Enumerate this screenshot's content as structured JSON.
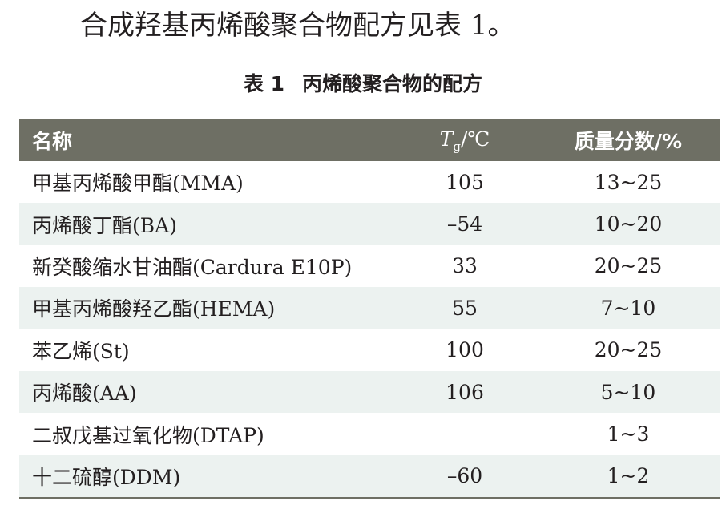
{
  "intro_text": "合成羟基丙烯酸聚合物配方见表 1。",
  "caption": {
    "number": "表 1",
    "title": "丙烯酸聚合物的配方"
  },
  "header": {
    "name": "名称",
    "tg_symbol": "T",
    "tg_sub": "g",
    "tg_unit": "/℃",
    "mass_fraction": "质量分数/%"
  },
  "rows": [
    {
      "name": "甲基丙烯酸甲酯(MMA)",
      "tg": "105",
      "mass": "13~25"
    },
    {
      "name": "丙烯酸丁酯(BA)",
      "tg": "–54",
      "mass": "10~20"
    },
    {
      "name": "新癸酸缩水甘油酯(Cardura E10P)",
      "tg": "33",
      "mass": "20~25"
    },
    {
      "name": "甲基丙烯酸羟乙酯(HEMA)",
      "tg": "55",
      "mass": "7~10"
    },
    {
      "name": "苯乙烯(St)",
      "tg": "100",
      "mass": "20~25"
    },
    {
      "name": "丙烯酸(AA)",
      "tg": "106",
      "mass": "5~10"
    },
    {
      "name": "二叔戊基过氧化物(DTAP)",
      "tg": "",
      "mass": "1~3"
    },
    {
      "name": "十二硫醇(DDM)",
      "tg": "–60",
      "mass": "1~2"
    }
  ],
  "colors": {
    "header_bg": "#6e6f64",
    "stripe_bg": "#ecf2f0",
    "text": "#231f20"
  }
}
